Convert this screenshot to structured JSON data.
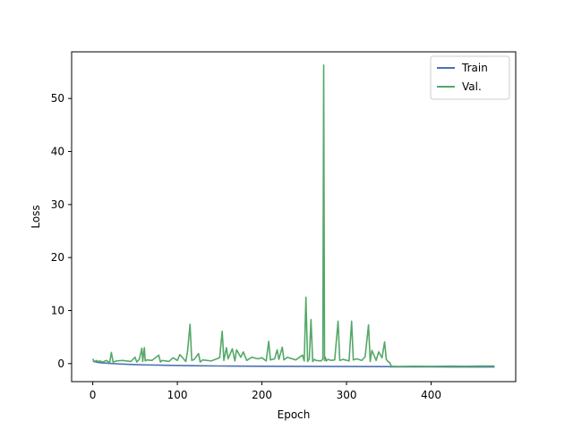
{
  "chart_data": {
    "type": "line",
    "title": "",
    "xlabel": "Epoch",
    "ylabel": "Loss",
    "xlim": [
      -25,
      500
    ],
    "ylim": [
      -3.4,
      58.8
    ],
    "xticks": [
      0,
      100,
      200,
      300,
      400
    ],
    "yticks": [
      0,
      10,
      20,
      30,
      40,
      50
    ],
    "grid": false,
    "legend_position": "top-right",
    "series": [
      {
        "name": "Train",
        "color": "#4c72b0",
        "x": [
          0,
          5,
          10,
          20,
          30,
          40,
          50,
          60,
          80,
          100,
          120,
          150,
          200,
          250,
          300,
          350,
          352,
          400,
          450,
          475
        ],
        "values": [
          0.5,
          0.25,
          0.15,
          0.05,
          -0.05,
          -0.12,
          -0.18,
          -0.24,
          -0.3,
          -0.35,
          -0.4,
          -0.45,
          -0.5,
          -0.53,
          -0.55,
          -0.57,
          -0.6,
          -0.62,
          -0.63,
          -0.64
        ]
      },
      {
        "name": "Val.",
        "color": "#55a868",
        "x": [
          0,
          2,
          4,
          6,
          8,
          12,
          16,
          20,
          22,
          24,
          28,
          35,
          45,
          50,
          52,
          55,
          58,
          59,
          61,
          62,
          64,
          70,
          78,
          80,
          82,
          90,
          95,
          100,
          103,
          110,
          112,
          115,
          117,
          120,
          125,
          127,
          130,
          140,
          150,
          153,
          155,
          158,
          160,
          165,
          168,
          170,
          175,
          178,
          182,
          188,
          195,
          200,
          205,
          208,
          210,
          215,
          218,
          220,
          224,
          226,
          230,
          240,
          248,
          250,
          252,
          254,
          256,
          258,
          260,
          262,
          264,
          270,
          272,
          273,
          274,
          275,
          276,
          278,
          282,
          286,
          290,
          292,
          296,
          303,
          306,
          308,
          312,
          318,
          322,
          326,
          328,
          330,
          335,
          338,
          342,
          345,
          347,
          349,
          351,
          353,
          360,
          380,
          400,
          420,
          440,
          460,
          475
        ],
        "values": [
          0.9,
          0.3,
          0.6,
          0.4,
          0.5,
          0.3,
          0.6,
          0.2,
          2.1,
          0.3,
          0.5,
          0.6,
          0.4,
          1.2,
          0.3,
          0.8,
          2.9,
          0.4,
          3.0,
          0.5,
          0.7,
          0.6,
          1.6,
          0.3,
          0.6,
          0.4,
          1.1,
          0.6,
          1.7,
          0.4,
          2.3,
          7.4,
          0.6,
          0.8,
          1.9,
          0.3,
          0.7,
          0.5,
          1.1,
          6.1,
          0.6,
          3.0,
          0.9,
          2.8,
          0.5,
          2.6,
          1.2,
          2.2,
          0.6,
          1.2,
          0.9,
          1.1,
          0.5,
          4.2,
          0.7,
          0.9,
          2.6,
          0.8,
          3.1,
          0.7,
          1.2,
          0.7,
          1.6,
          0.5,
          12.5,
          0.4,
          0.9,
          8.3,
          0.4,
          0.8,
          0.6,
          0.5,
          0.9,
          56.3,
          0.6,
          1.2,
          0.5,
          0.8,
          0.6,
          0.7,
          8.0,
          0.6,
          0.8,
          0.5,
          8.0,
          0.7,
          0.9,
          0.6,
          1.3,
          7.3,
          0.4,
          2.5,
          0.6,
          2.2,
          1.1,
          4.1,
          0.8,
          0.4,
          0.2,
          -0.5,
          -0.55,
          -0.5,
          -0.52,
          -0.48,
          -0.5,
          -0.46,
          -0.45
        ]
      }
    ]
  }
}
